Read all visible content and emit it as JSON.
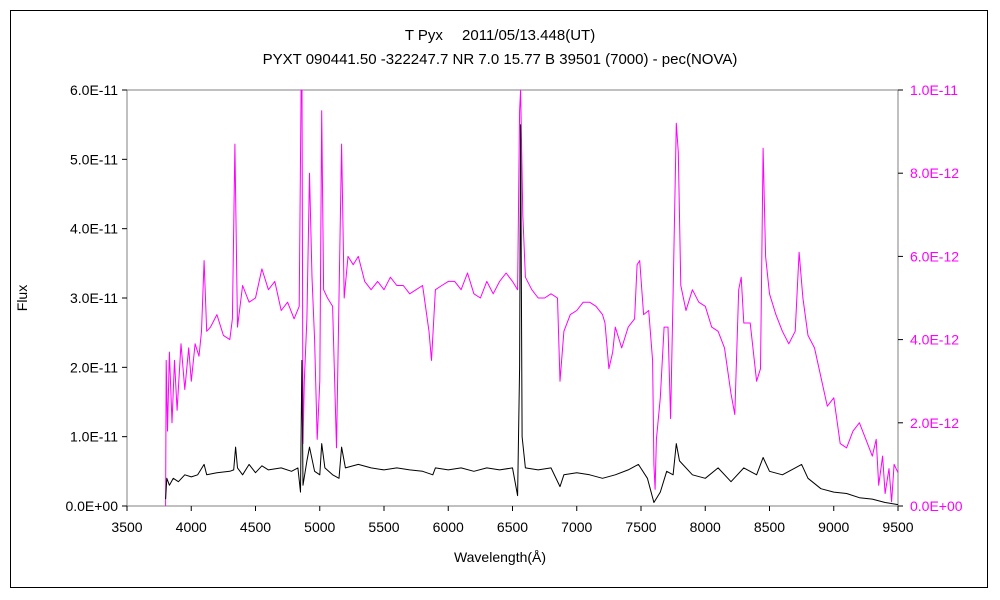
{
  "chart_data": {
    "type": "line",
    "title": "T Pyx　 2011/05/13.448(UT)",
    "subtitle": "PYXT 090441.50 -322247.7 NR 7.0 15.77 B 39501 (7000) - pec(NOVA)",
    "xlabel": "Wavelength(Å)",
    "ylabel": "Flux",
    "xlim": [
      3500,
      9500
    ],
    "ylim": [
      0,
      6e-11
    ],
    "y2lim": [
      0,
      1e-11
    ],
    "x_ticks": [
      "3500",
      "4000",
      "4500",
      "5000",
      "5500",
      "6000",
      "6500",
      "7000",
      "7500",
      "8000",
      "8500",
      "9000",
      "9500"
    ],
    "y_ticks": [
      "0.0E+00",
      "1.0E-11",
      "2.0E-11",
      "3.0E-11",
      "4.0E-11",
      "5.0E-11",
      "6.0E-11"
    ],
    "y2_ticks": [
      "0.0E+00",
      "2.0E-12",
      "4.0E-12",
      "6.0E-12",
      "8.0E-12",
      "1.0E-11"
    ],
    "grid": false,
    "series": [
      {
        "axis": "left",
        "color": "#000000",
        "points": [
          [
            3800,
            1e-12
          ],
          [
            3810,
            4e-12
          ],
          [
            3830,
            3e-12
          ],
          [
            3860,
            4e-12
          ],
          [
            3900,
            3.5e-12
          ],
          [
            3950,
            4.5e-12
          ],
          [
            4000,
            4.2e-12
          ],
          [
            4050,
            4.5e-12
          ],
          [
            4100,
            6e-12
          ],
          [
            4120,
            4.5e-12
          ],
          [
            4200,
            4.8e-12
          ],
          [
            4300,
            5e-12
          ],
          [
            4330,
            5.2e-12
          ],
          [
            4345,
            8.5e-12
          ],
          [
            4360,
            5.5e-12
          ],
          [
            4400,
            4.5e-12
          ],
          [
            4450,
            6e-12
          ],
          [
            4500,
            4.8e-12
          ],
          [
            4550,
            5.8e-12
          ],
          [
            4600,
            5.2e-12
          ],
          [
            4700,
            5.5e-12
          ],
          [
            4780,
            5e-12
          ],
          [
            4830,
            5.5e-12
          ],
          [
            4850,
            2e-12
          ],
          [
            4861,
            2.1e-11
          ],
          [
            4870,
            3e-12
          ],
          [
            4900,
            6.5e-12
          ],
          [
            4920,
            8.5e-12
          ],
          [
            4960,
            5e-12
          ],
          [
            5000,
            4.5e-12
          ],
          [
            5015,
            9e-12
          ],
          [
            5040,
            5.5e-12
          ],
          [
            5100,
            4.5e-12
          ],
          [
            5150,
            4e-12
          ],
          [
            5170,
            8.5e-12
          ],
          [
            5200,
            5.5e-12
          ],
          [
            5300,
            6e-12
          ],
          [
            5400,
            5.5e-12
          ],
          [
            5500,
            5.2e-12
          ],
          [
            5600,
            5.5e-12
          ],
          [
            5700,
            5.2e-12
          ],
          [
            5800,
            5e-12
          ],
          [
            5880,
            4.5e-12
          ],
          [
            5900,
            5.5e-12
          ],
          [
            6000,
            5.2e-12
          ],
          [
            6100,
            5.5e-12
          ],
          [
            6200,
            5e-12
          ],
          [
            6300,
            5.5e-12
          ],
          [
            6400,
            5.2e-12
          ],
          [
            6500,
            5.5e-12
          ],
          [
            6540,
            1.5e-12
          ],
          [
            6555,
            2e-11
          ],
          [
            6563,
            5.5e-11
          ],
          [
            6575,
            1e-11
          ],
          [
            6600,
            5.5e-12
          ],
          [
            6700,
            5.2e-12
          ],
          [
            6800,
            5.5e-12
          ],
          [
            6870,
            2.8e-12
          ],
          [
            6900,
            4.5e-12
          ],
          [
            7000,
            4.8e-12
          ],
          [
            7100,
            4.5e-12
          ],
          [
            7200,
            4e-12
          ],
          [
            7300,
            4.5e-12
          ],
          [
            7400,
            5.2e-12
          ],
          [
            7480,
            6e-12
          ],
          [
            7550,
            4e-12
          ],
          [
            7600,
            5e-13
          ],
          [
            7650,
            2e-12
          ],
          [
            7700,
            5e-12
          ],
          [
            7750,
            4.5e-12
          ],
          [
            7775,
            9e-12
          ],
          [
            7800,
            6.5e-12
          ],
          [
            7900,
            4.5e-12
          ],
          [
            8000,
            4e-12
          ],
          [
            8100,
            5.5e-12
          ],
          [
            8200,
            3.5e-12
          ],
          [
            8300,
            5.5e-12
          ],
          [
            8400,
            4.5e-12
          ],
          [
            8450,
            7e-12
          ],
          [
            8500,
            5e-12
          ],
          [
            8600,
            4.5e-12
          ],
          [
            8700,
            5.5e-12
          ],
          [
            8750,
            6e-12
          ],
          [
            8800,
            4e-12
          ],
          [
            8900,
            2.5e-12
          ],
          [
            9000,
            2e-12
          ],
          [
            9100,
            1.8e-12
          ],
          [
            9200,
            1.2e-12
          ],
          [
            9300,
            1e-12
          ],
          [
            9400,
            5e-13
          ],
          [
            9500,
            2e-13
          ]
        ]
      },
      {
        "axis": "right",
        "color": "#ff00ff",
        "points": [
          [
            3800,
            0.0
          ],
          [
            3805,
            3.5e-12
          ],
          [
            3815,
            1.8e-12
          ],
          [
            3830,
            3.7e-12
          ],
          [
            3850,
            2e-12
          ],
          [
            3870,
            3.5e-12
          ],
          [
            3890,
            2.3e-12
          ],
          [
            3920,
            3.9e-12
          ],
          [
            3950,
            2.8e-12
          ],
          [
            3980,
            3.8e-12
          ],
          [
            4000,
            3e-12
          ],
          [
            4030,
            3.9e-12
          ],
          [
            4060,
            3.6e-12
          ],
          [
            4080,
            4.2e-12
          ],
          [
            4100,
            5.9e-12
          ],
          [
            4120,
            4.2e-12
          ],
          [
            4150,
            4.3e-12
          ],
          [
            4200,
            4.6e-12
          ],
          [
            4250,
            4.1e-12
          ],
          [
            4300,
            4e-12
          ],
          [
            4320,
            4.5e-12
          ],
          [
            4340,
            8.7e-12
          ],
          [
            4360,
            4.3e-12
          ],
          [
            4400,
            5.3e-12
          ],
          [
            4450,
            4.9e-12
          ],
          [
            4500,
            5e-12
          ],
          [
            4550,
            5.7e-12
          ],
          [
            4600,
            5.2e-12
          ],
          [
            4650,
            5.4e-12
          ],
          [
            4700,
            4.7e-12
          ],
          [
            4750,
            4.9e-12
          ],
          [
            4800,
            4.5e-12
          ],
          [
            4840,
            4.8e-12
          ],
          [
            4855,
            1e-11
          ],
          [
            4862,
            1e-11
          ],
          [
            4870,
            1.5e-12
          ],
          [
            4880,
            3e-12
          ],
          [
            4900,
            4.5e-12
          ],
          [
            4920,
            8e-12
          ],
          [
            4940,
            5.5e-12
          ],
          [
            4960,
            4e-12
          ],
          [
            4980,
            1.6e-12
          ],
          [
            5000,
            3e-12
          ],
          [
            5015,
            9.5e-12
          ],
          [
            5030,
            5.2e-12
          ],
          [
            5060,
            5e-12
          ],
          [
            5100,
            4.8e-12
          ],
          [
            5130,
            1.4e-12
          ],
          [
            5150,
            5e-12
          ],
          [
            5170,
            8.7e-12
          ],
          [
            5190,
            5e-12
          ],
          [
            5220,
            6e-12
          ],
          [
            5260,
            5.8e-12
          ],
          [
            5300,
            6e-12
          ],
          [
            5350,
            5.4e-12
          ],
          [
            5400,
            5.2e-12
          ],
          [
            5450,
            5.4e-12
          ],
          [
            5500,
            5.2e-12
          ],
          [
            5550,
            5.5e-12
          ],
          [
            5600,
            5.3e-12
          ],
          [
            5650,
            5.3e-12
          ],
          [
            5700,
            5.1e-12
          ],
          [
            5750,
            5.2e-12
          ],
          [
            5800,
            5.3e-12
          ],
          [
            5850,
            4.2e-12
          ],
          [
            5870,
            3.5e-12
          ],
          [
            5900,
            5.2e-12
          ],
          [
            5950,
            5.3e-12
          ],
          [
            6000,
            5.4e-12
          ],
          [
            6050,
            5.4e-12
          ],
          [
            6100,
            5.2e-12
          ],
          [
            6150,
            5.6e-12
          ],
          [
            6200,
            5.1e-12
          ],
          [
            6250,
            5e-12
          ],
          [
            6300,
            5.4e-12
          ],
          [
            6350,
            5.1e-12
          ],
          [
            6400,
            5.4e-12
          ],
          [
            6450,
            5.6e-12
          ],
          [
            6500,
            5.4e-12
          ],
          [
            6540,
            5.2e-12
          ],
          [
            6555,
            9.5e-12
          ],
          [
            6563,
            1e-11
          ],
          [
            6580,
            7e-12
          ],
          [
            6600,
            5.5e-12
          ],
          [
            6650,
            5.2e-12
          ],
          [
            6700,
            5e-12
          ],
          [
            6750,
            5e-12
          ],
          [
            6800,
            5.1e-12
          ],
          [
            6850,
            5e-12
          ],
          [
            6870,
            3e-12
          ],
          [
            6900,
            4.2e-12
          ],
          [
            6950,
            4.6e-12
          ],
          [
            7000,
            4.7e-12
          ],
          [
            7050,
            4.9e-12
          ],
          [
            7100,
            4.9e-12
          ],
          [
            7150,
            4.8e-12
          ],
          [
            7200,
            4.6e-12
          ],
          [
            7220,
            4.4e-12
          ],
          [
            7250,
            3.3e-12
          ],
          [
            7280,
            3.7e-12
          ],
          [
            7300,
            4.3e-12
          ],
          [
            7350,
            3.8e-12
          ],
          [
            7400,
            4.3e-12
          ],
          [
            7450,
            4.5e-12
          ],
          [
            7470,
            5.8e-12
          ],
          [
            7490,
            5.9e-12
          ],
          [
            7520,
            4.6e-12
          ],
          [
            7560,
            4.7e-12
          ],
          [
            7590,
            3.5e-12
          ],
          [
            7600,
            1e-12
          ],
          [
            7610,
            4e-13
          ],
          [
            7620,
            1.6e-12
          ],
          [
            7650,
            2.6e-12
          ],
          [
            7680,
            4.3e-12
          ],
          [
            7710,
            4.3e-12
          ],
          [
            7730,
            2.1e-12
          ],
          [
            7750,
            5.1e-12
          ],
          [
            7775,
            9.2e-12
          ],
          [
            7790,
            8.5e-12
          ],
          [
            7810,
            5.3e-12
          ],
          [
            7850,
            4.7e-12
          ],
          [
            7900,
            5.2e-12
          ],
          [
            7950,
            4.9e-12
          ],
          [
            8000,
            4.8e-12
          ],
          [
            8050,
            4.3e-12
          ],
          [
            8100,
            4.2e-12
          ],
          [
            8150,
            3.8e-12
          ],
          [
            8200,
            2.7e-12
          ],
          [
            8230,
            2.2e-12
          ],
          [
            8260,
            5.2e-12
          ],
          [
            8280,
            5.5e-12
          ],
          [
            8300,
            4.4e-12
          ],
          [
            8350,
            4.4e-12
          ],
          [
            8400,
            3e-12
          ],
          [
            8430,
            3.3e-12
          ],
          [
            8450,
            8.6e-12
          ],
          [
            8470,
            6e-12
          ],
          [
            8500,
            5.1e-12
          ],
          [
            8550,
            4.6e-12
          ],
          [
            8600,
            4.2e-12
          ],
          [
            8650,
            3.9e-12
          ],
          [
            8700,
            4.2e-12
          ],
          [
            8730,
            6.1e-12
          ],
          [
            8760,
            5e-12
          ],
          [
            8800,
            4.1e-12
          ],
          [
            8850,
            3.8e-12
          ],
          [
            8900,
            3.1e-12
          ],
          [
            8950,
            2.4e-12
          ],
          [
            9000,
            2.6e-12
          ],
          [
            9050,
            1.5e-12
          ],
          [
            9100,
            1.4e-12
          ],
          [
            9150,
            1.8e-12
          ],
          [
            9200,
            2e-12
          ],
          [
            9250,
            1.6e-12
          ],
          [
            9300,
            1.2e-12
          ],
          [
            9330,
            1.6e-12
          ],
          [
            9350,
            5e-13
          ],
          [
            9380,
            1.2e-12
          ],
          [
            9400,
            3e-13
          ],
          [
            9430,
            9e-13
          ],
          [
            9450,
            1e-13
          ],
          [
            9470,
            1e-12
          ],
          [
            9500,
            8e-13
          ]
        ]
      }
    ]
  }
}
